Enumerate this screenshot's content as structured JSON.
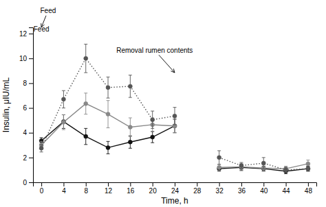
{
  "chart_data": {
    "type": "line",
    "x_label": "Time, h",
    "y_label": "Insulin, μIU/mL",
    "x": [
      0,
      4,
      8,
      12,
      16,
      20,
      24,
      28,
      32,
      36,
      40,
      44,
      48
    ],
    "series": [
      {
        "color": "#111111",
        "line_style": "solid",
        "marker": "circle",
        "values": [
          3.35,
          4.9,
          3.7,
          2.8,
          3.25,
          3.65,
          4.55,
          null,
          1.1,
          1.2,
          1.1,
          0.9,
          1.1
        ],
        "errors": [
          0.25,
          0.55,
          0.65,
          0.5,
          0.5,
          0.45,
          0.55,
          null,
          0.2,
          0.25,
          0.2,
          0.2,
          0.2
        ]
      },
      {
        "color": "#888888",
        "line_style": "solid",
        "marker": "circle",
        "values": [
          3.0,
          4.85,
          6.35,
          5.5,
          4.45,
          4.65,
          4.55,
          null,
          1.2,
          1.25,
          1.15,
          1.1,
          1.5
        ],
        "errors": [
          0.3,
          0.6,
          0.85,
          1.1,
          0.75,
          0.55,
          0.55,
          null,
          0.25,
          0.25,
          0.25,
          0.2,
          0.3
        ]
      },
      {
        "color": "#555555",
        "line_style": "dotted",
        "marker": "circle",
        "values": [
          2.75,
          6.7,
          10.0,
          7.65,
          7.75,
          5.05,
          5.35,
          null,
          2.0,
          1.35,
          1.55,
          1.0,
          1.1
        ],
        "errors": [
          0.3,
          0.7,
          1.15,
          0.85,
          0.9,
          0.7,
          0.7,
          null,
          0.55,
          0.25,
          0.45,
          0.2,
          0.2
        ]
      }
    ],
    "xlim": [
      -1.5,
      49.5
    ],
    "xticks": [
      0,
      4,
      8,
      12,
      16,
      20,
      24,
      28,
      32,
      36,
      40,
      44,
      48
    ],
    "ylim": [
      0.0,
      12.5
    ],
    "yticks": [
      0.0,
      2.0,
      4.0,
      6.0,
      8.0,
      10.0,
      12.0
    ],
    "grid": false,
    "annotations": [
      {
        "text": "Feed",
        "x": 0,
        "y": 12.0
      },
      {
        "text": "Feed",
        "x": -0.2,
        "y": 13.5,
        "arrow_x": 0,
        "arrow_y": 12.5
      },
      {
        "text": "Removal rumen contents",
        "x": 13.5,
        "y": 10.3,
        "arrow_x": 24,
        "arrow_y": 8.85
      }
    ]
  }
}
